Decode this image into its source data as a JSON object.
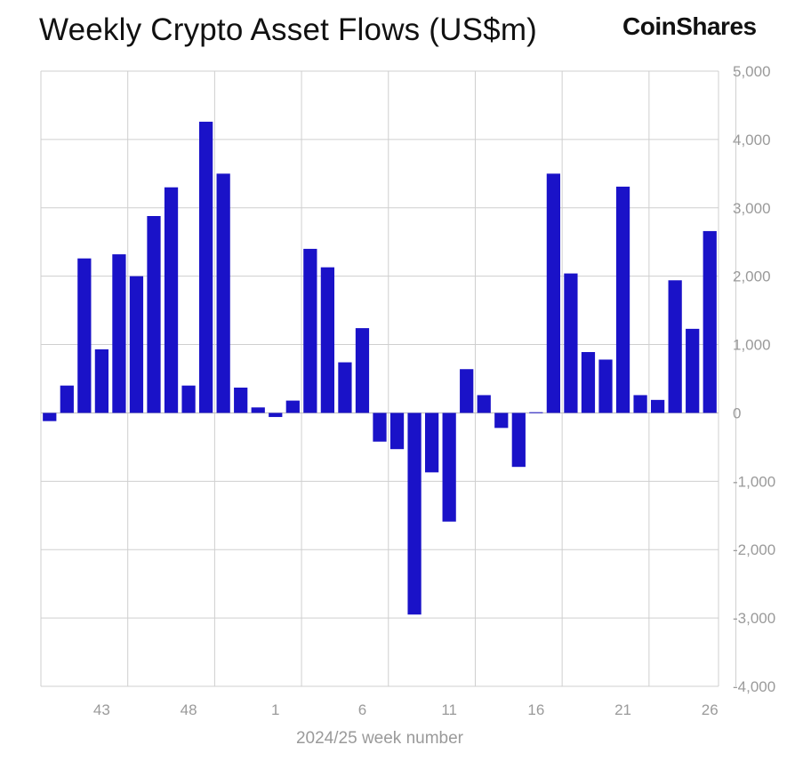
{
  "header": {
    "title": "Weekly Crypto Asset Flows (US$m)",
    "brand": "CoinShares"
  },
  "chart_data": {
    "type": "bar",
    "title": "Weekly Crypto Asset Flows (US$m)",
    "xlabel": "2024/25 week number",
    "ylabel": "",
    "ylim": [
      -4000,
      5000
    ],
    "yticks": [
      5000,
      4000,
      3000,
      2000,
      1000,
      0,
      -1000,
      -2000,
      -3000,
      -4000
    ],
    "ytick_labels": [
      "5,000",
      "4,000",
      "3,000",
      "2,000",
      "1,000",
      "0",
      "-1,000",
      "-2,000",
      "-3,000",
      "-4,000"
    ],
    "grid": true,
    "bar_color": "#1a12c8",
    "categories": [
      "40",
      "41",
      "42",
      "43",
      "44",
      "45",
      "46",
      "47",
      "48",
      "49",
      "50",
      "51",
      "52",
      "1",
      "2",
      "3",
      "4",
      "5",
      "6",
      "7",
      "8",
      "9",
      "10",
      "11",
      "12",
      "13",
      "14",
      "15",
      "16",
      "17",
      "18",
      "19",
      "20",
      "21",
      "22",
      "23",
      "24",
      "25",
      "26"
    ],
    "x_tick_labels": [
      "43",
      "48",
      "1",
      "6",
      "11",
      "16",
      "21",
      "26"
    ],
    "values": [
      -120,
      400,
      2260,
      930,
      2320,
      2000,
      2880,
      3300,
      400,
      4260,
      3500,
      370,
      80,
      -60,
      180,
      2400,
      2130,
      740,
      1240,
      -420,
      -530,
      -2950,
      -870,
      -1590,
      640,
      260,
      -220,
      -790,
      10,
      3500,
      2040,
      890,
      780,
      3310,
      260,
      190,
      1940,
      1230,
      2660
    ]
  }
}
